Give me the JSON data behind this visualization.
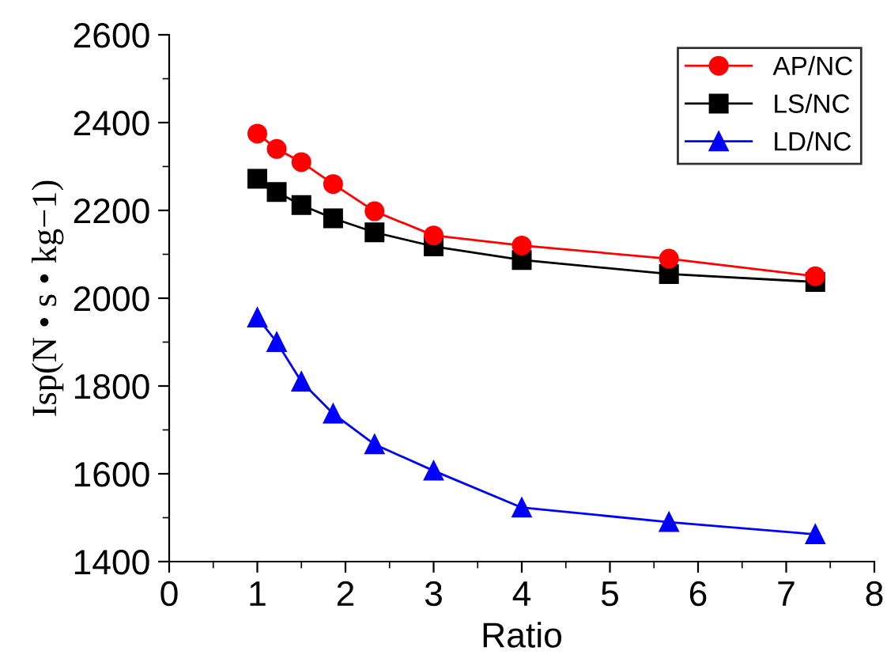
{
  "chart_data": {
    "type": "line",
    "xlabel": "Ratio",
    "ylabel": "Isp(N • s • kg−1)",
    "x": [
      1,
      1.22,
      1.5,
      1.86,
      2.33,
      3,
      4,
      5.67,
      7.33
    ],
    "series": [
      {
        "name": "AP/NC",
        "color": "#ff0000",
        "marker": "circle",
        "values": [
          2375,
          2340,
          2310,
          2260,
          2198,
          2143,
          2120,
          2090,
          2050
        ]
      },
      {
        "name": "LS/NC",
        "color": "#000000",
        "marker": "square",
        "values": [
          2272,
          2242,
          2212,
          2182,
          2150,
          2118,
          2087,
          2055,
          2037
        ]
      },
      {
        "name": "LD/NC",
        "color": "#0000ff",
        "marker": "triangle",
        "values": [
          1956,
          1900,
          1810,
          1737,
          1667,
          1607,
          1523,
          1490,
          1462
        ]
      }
    ],
    "xlim": [
      0,
      8
    ],
    "xticks": [
      0,
      1,
      2,
      3,
      4,
      5,
      6,
      7,
      8
    ],
    "ylim": [
      1400,
      2600
    ],
    "yticks": [
      1400,
      1600,
      1800,
      2000,
      2200,
      2400,
      2600
    ],
    "grid": false,
    "legend": "top right",
    "line_style": "solid"
  }
}
